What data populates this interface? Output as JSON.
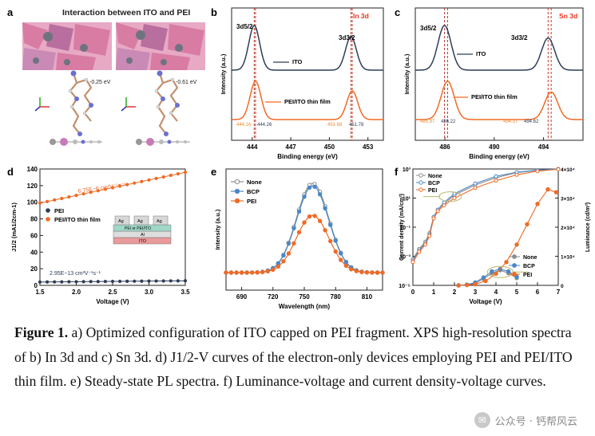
{
  "panels": {
    "a": {
      "letter": "a",
      "title": "Interaction between ITO and PEI",
      "energy_left": "-0.25 eV",
      "energy_right": "-0.61 eV",
      "colors": {
        "pink": "#d87ca4",
        "purple": "#a36ea0",
        "gray": "#6d7480",
        "tan": "#c28f6c"
      }
    },
    "b": {
      "letter": "b",
      "region": "In 3d",
      "peak_labels": [
        "3d5/2",
        "3d3/2"
      ],
      "series_labels": [
        "ITO",
        "PEI/ITO thin film"
      ],
      "peak_values": {
        "left_ito": "444.16",
        "left_pei": "444.26",
        "right_ito": "451.68",
        "right_pei": "451.78"
      },
      "colors": {
        "top": "#2e3d57",
        "bottom": "#f06a25",
        "orange_text": "#f08a30",
        "blue_text": "#2e3d57"
      }
    },
    "c": {
      "letter": "c",
      "region": "Sn 3d",
      "peak_labels": [
        "3d5/2",
        "3d3/2"
      ],
      "series_labels": [
        "ITO",
        "PEI/ITO thin film"
      ],
      "peak_values": {
        "left_ito": "485.97",
        "left_pei": "486.22",
        "right_ito": "494.37",
        "right_pei": "494.62"
      },
      "colors": {
        "top": "#2e3d57",
        "bottom": "#f06a25"
      }
    },
    "d": {
      "letter": "d",
      "slope_pei": "6.75E−6 cm²V⁻¹s⁻¹",
      "slope_ito": "2.95E−13 cm²V⁻¹s⁻¹",
      "device_layers": [
        "Ag",
        "Ag",
        "Ag",
        "PEI or PEI/ITO",
        "Al",
        "ITO"
      ]
    },
    "e": {
      "letter": "e"
    },
    "f": {
      "letter": "f"
    }
  },
  "chart_data": [
    {
      "id": "b",
      "type": "line",
      "title": "",
      "xlabel": "Binding energy (eV)",
      "ylabel": "Intensity (a.u.)",
      "xlim": [
        442.4,
        454.2
      ],
      "xticks": [
        444,
        447,
        450,
        453
      ],
      "reversed_x": false,
      "series": [
        {
          "name": "ITO",
          "peaks": [
            {
              "x": 444.16,
              "amp": 1.0,
              "w": 0.6
            },
            {
              "x": 451.68,
              "amp": 0.75,
              "w": 0.6
            }
          ]
        },
        {
          "name": "PEI/ITO thin film",
          "peaks": [
            {
              "x": 444.26,
              "amp": 1.0,
              "w": 0.6
            },
            {
              "x": 451.78,
              "amp": 0.75,
              "w": 0.6
            }
          ]
        }
      ]
    },
    {
      "id": "c",
      "type": "line",
      "title": "",
      "xlabel": "Binding energy (eV)",
      "ylabel": "Intensity (a.u.)",
      "xlim": [
        483.6,
        497.2
      ],
      "xticks": [
        486,
        490,
        494
      ],
      "reversed_x": false,
      "series": [
        {
          "name": "ITO",
          "peaks": [
            {
              "x": 485.97,
              "amp": 1.0,
              "w": 0.75
            },
            {
              "x": 494.37,
              "amp": 0.72,
              "w": 0.75
            }
          ]
        },
        {
          "name": "PEI/ITO thin film",
          "peaks": [
            {
              "x": 486.22,
              "amp": 1.0,
              "w": 0.75
            },
            {
              "x": 494.62,
              "amp": 0.72,
              "w": 0.75
            }
          ]
        }
      ]
    },
    {
      "id": "d",
      "type": "scatter",
      "title": "",
      "xlabel": "Voltage (V)",
      "ylabel": "J1/2 (mA1/2cm-1)",
      "xlim": [
        1.5,
        3.5
      ],
      "ylim": [
        0,
        140
      ],
      "xticks": [
        1.5,
        2.0,
        2.5,
        3.0,
        3.5
      ],
      "yticks": [
        0,
        20,
        40,
        60,
        80,
        100,
        120,
        140
      ],
      "legend": [
        "PEI",
        "PEI/ITO thin film"
      ],
      "series": [
        {
          "name": "PEI",
          "x_start": 1.5,
          "x_end": 3.5,
          "y_start": 4.0,
          "y_end": 5.5,
          "n": 21
        },
        {
          "name": "PEI/ITO thin film",
          "x_start": 1.5,
          "x_end": 3.5,
          "y_start": 99,
          "y_end": 136,
          "n": 21
        }
      ]
    },
    {
      "id": "e",
      "type": "line",
      "title": "",
      "xlabel": "Wavelength (nm)",
      "ylabel": "Intensity (a.u.)",
      "xlim": [
        675,
        825
      ],
      "xticks": [
        690,
        720,
        750,
        780,
        810
      ],
      "legend": [
        "None",
        "BCP",
        "PEI"
      ],
      "series": [
        {
          "name": "None",
          "center": 758,
          "amp": 1.0,
          "width": 22
        },
        {
          "name": "BCP",
          "center": 758,
          "amp": 0.97,
          "width": 22
        },
        {
          "name": "PEI",
          "center": 758,
          "amp": 0.64,
          "width": 22
        }
      ]
    },
    {
      "id": "f",
      "type": "line",
      "title": "",
      "xlabel": "Voltage (V)",
      "ylabel": "Current density (mA/cm²)",
      "ylabel_right": "Luminance (cd/m²)",
      "xlim": [
        0,
        7
      ],
      "xticks": [
        0,
        1,
        2,
        3,
        4,
        5,
        6,
        7
      ],
      "ylim_log": [
        -5,
        3
      ],
      "yticks_log": [
        "10³",
        "10¹",
        "10⁻¹",
        "10⁻³",
        "10⁻⁵"
      ],
      "ylim_right": [
        0,
        40000
      ],
      "yticks_right": [
        "0",
        "1×10⁴",
        "2×10⁴",
        "3×10⁴",
        "4×10⁴"
      ],
      "legend_top": [
        "None",
        "BCP",
        "PEI"
      ],
      "legend_bottom": [
        "None",
        "BCP",
        "PEI"
      ],
      "current_density": [
        {
          "name": "None",
          "x": [
            0,
            0.3,
            0.6,
            0.8,
            1.0,
            1.2,
            1.5,
            2,
            3,
            4,
            5,
            6,
            7
          ],
          "log_y": [
            -3.2,
            -2.5,
            -2.0,
            -1.4,
            -0.3,
            0.2,
            0.6,
            1.2,
            1.9,
            2.4,
            2.75,
            2.9,
            3.0
          ]
        },
        {
          "name": "BCP",
          "x": [
            0,
            0.3,
            0.6,
            0.8,
            1.0,
            1.2,
            1.5,
            2,
            3,
            4,
            5,
            6,
            7
          ],
          "log_y": [
            -3.3,
            -2.6,
            -2.1,
            -1.5,
            -0.3,
            0.2,
            0.7,
            1.3,
            2.0,
            2.5,
            2.78,
            2.92,
            3.0
          ]
        },
        {
          "name": "PEI",
          "x": [
            0,
            0.3,
            0.6,
            0.8,
            1.0,
            1.2,
            1.5,
            2,
            3,
            4,
            5,
            6,
            7
          ],
          "log_y": [
            -3.4,
            -2.7,
            -2.2,
            -1.6,
            -0.4,
            0.1,
            0.5,
            1.0,
            1.7,
            2.2,
            2.6,
            2.85,
            2.98
          ]
        }
      ],
      "luminance": [
        {
          "name": "None",
          "x": [
            2.2,
            2.6,
            3.0,
            3.4,
            3.8,
            4.2,
            4.6,
            5.0
          ],
          "y": [
            0,
            200,
            800,
            2200,
            4200,
            5200,
            4200,
            2500
          ]
        },
        {
          "name": "BCP",
          "x": [
            2.2,
            2.6,
            3.0,
            3.4,
            3.8,
            4.2,
            4.6,
            5.0
          ],
          "y": [
            0,
            250,
            1000,
            2700,
            4800,
            5600,
            4800,
            3000
          ]
        },
        {
          "name": "PEI",
          "x": [
            2.2,
            2.6,
            3.0,
            3.5,
            4.0,
            4.5,
            5.0,
            5.5,
            6.0,
            6.5,
            6.9
          ],
          "y": [
            0,
            100,
            400,
            1500,
            4000,
            8000,
            14000,
            21000,
            28000,
            33000,
            32000
          ]
        }
      ]
    }
  ],
  "caption": {
    "label": "Figure 1.",
    "text": " a) Optimized configuration of ITO capped on PEI fragment. XPS high-resolution spectra of b) In 3d and c) Sn 3d. d) J1/2-V curves of the electron-only devices employing PEI and PEI/ITO thin film. e) Steady-state PL spectra. f) Luminance-voltage and current density-voltage curves."
  },
  "watermark": {
    "text": "公众号 · 钙帮风云",
    "icon": "wechat-icon"
  }
}
